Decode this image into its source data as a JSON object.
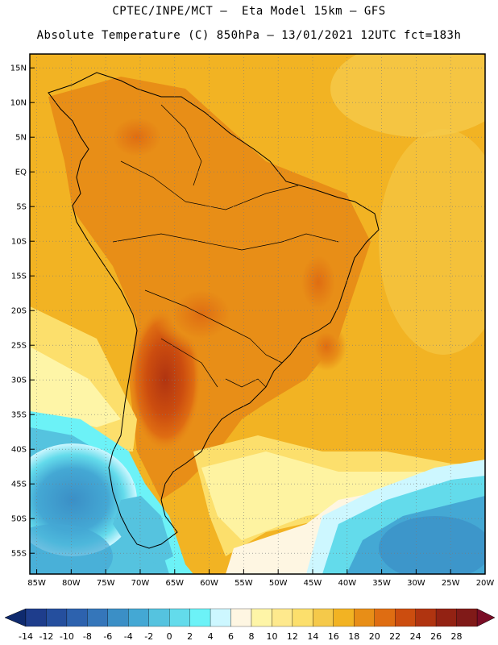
{
  "header": {
    "line1": "CPTEC/INPE/MCT –  Eta Model 15km – GFS",
    "line2": "Absolute Temperature (C) 850hPa – 13/01/2021 12UTC fct=183h"
  },
  "map": {
    "lon_range": [
      -86,
      -20
    ],
    "lat_range": [
      -58,
      17
    ],
    "lon_ticks": [
      {
        "value": -85,
        "label": "85W"
      },
      {
        "value": -80,
        "label": "80W"
      },
      {
        "value": -75,
        "label": "75W"
      },
      {
        "value": -70,
        "label": "70W"
      },
      {
        "value": -65,
        "label": "65W"
      },
      {
        "value": -60,
        "label": "60W"
      },
      {
        "value": -55,
        "label": "55W"
      },
      {
        "value": -50,
        "label": "50W"
      },
      {
        "value": -45,
        "label": "45W"
      },
      {
        "value": -40,
        "label": "40W"
      },
      {
        "value": -35,
        "label": "35W"
      },
      {
        "value": -30,
        "label": "30W"
      },
      {
        "value": -25,
        "label": "25W"
      },
      {
        "value": -20,
        "label": "20W"
      }
    ],
    "lat_ticks": [
      {
        "value": 15,
        "label": "15N"
      },
      {
        "value": 10,
        "label": "10N"
      },
      {
        "value": 5,
        "label": "5N"
      },
      {
        "value": 0,
        "label": "EQ"
      },
      {
        "value": -5,
        "label": "5S"
      },
      {
        "value": -10,
        "label": "10S"
      },
      {
        "value": -15,
        "label": "15S"
      },
      {
        "value": -20,
        "label": "20S"
      },
      {
        "value": -25,
        "label": "25S"
      },
      {
        "value": -30,
        "label": "30S"
      },
      {
        "value": -35,
        "label": "35S"
      },
      {
        "value": -40,
        "label": "40S"
      },
      {
        "value": -45,
        "label": "45S"
      },
      {
        "value": -50,
        "label": "50S"
      },
      {
        "value": -55,
        "label": "55S"
      }
    ]
  },
  "colorbar": {
    "labels": [
      "-14",
      "-12",
      "-10",
      "-8",
      "-6",
      "-4",
      "-2",
      "0",
      "2",
      "4",
      "6",
      "8",
      "10",
      "12",
      "14",
      "16",
      "18",
      "20",
      "22",
      "24",
      "26",
      "28"
    ],
    "colors": [
      "#1e3d8c",
      "#254f9e",
      "#2d62ae",
      "#3576ba",
      "#3b8fc6",
      "#44a8d4",
      "#55c3df",
      "#63dbeb",
      "#6cf2f7",
      "#cdf7ff",
      "#fef6e2",
      "#fef5a7",
      "#fee98d",
      "#fcdf6c",
      "#f5c94a",
      "#f2b323",
      "#e88e17",
      "#df6d12",
      "#cc4d0f",
      "#b03410",
      "#932213",
      "#801a18"
    ],
    "low_end": "#0f2a6e",
    "high_end": "#7a0d26"
  },
  "colors": {
    "warm": "#f2b323",
    "land_hot": "#e88e17",
    "hot_core": "#cc4d0f",
    "cold_sea": "#44a8d4"
  }
}
